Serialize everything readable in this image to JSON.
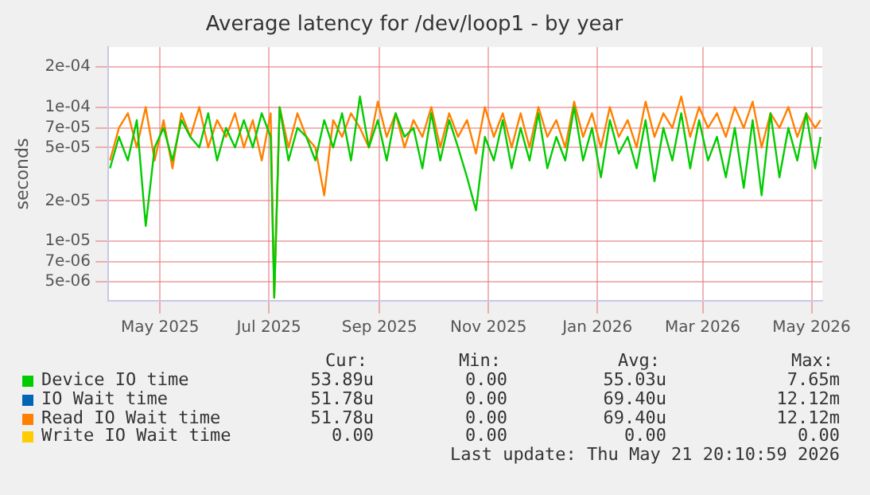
{
  "chart_data": {
    "type": "line",
    "title": "Average latency for /dev/loop1 - by year",
    "ylabel": "seconds",
    "log": "y",
    "grid": true,
    "legend": "bottom",
    "marker": "none",
    "line_style": "solid",
    "xlim": [
      "2025-04-16",
      "2026-05-21"
    ],
    "xticks": [
      {
        "value": "2025-05-15",
        "label": "May 2025"
      },
      {
        "value": "2025-07-15",
        "label": "Jul 2025"
      },
      {
        "value": "2025-09-15",
        "label": "Sep 2025"
      },
      {
        "value": "2025-11-15",
        "label": "Nov 2025"
      },
      {
        "value": "2026-01-15",
        "label": "Jan 2026"
      },
      {
        "value": "2026-03-15",
        "label": "Mar 2026"
      },
      {
        "value": "2026-05-15",
        "label": "May 2026"
      }
    ],
    "ylim": [
      3.6e-06,
      0.00028
    ],
    "yticks": [
      {
        "value": 5e-06,
        "label": "5e-06"
      },
      {
        "value": 7e-06,
        "label": "7e-06"
      },
      {
        "value": 1e-05,
        "label": "1e-05"
      },
      {
        "value": 2e-05,
        "label": "2e-05"
      },
      {
        "value": 5e-05,
        "label": "5e-05"
      },
      {
        "value": 7e-05,
        "label": "7e-05"
      },
      {
        "value": 0.0001,
        "label": "1e-04"
      },
      {
        "value": 0.0002,
        "label": "2e-04"
      }
    ],
    "x": [
      "2025-04-17",
      "2025-04-22",
      "2025-04-27",
      "2025-05-02",
      "2025-05-07",
      "2025-05-12",
      "2025-05-17",
      "2025-05-22",
      "2025-05-27",
      "2025-06-01",
      "2025-06-06",
      "2025-06-11",
      "2025-06-16",
      "2025-06-21",
      "2025-06-26",
      "2025-07-01",
      "2025-07-06",
      "2025-07-11",
      "2025-07-16",
      "2025-07-18",
      "2025-07-21",
      "2025-07-26",
      "2025-07-31",
      "2025-08-05",
      "2025-08-10",
      "2025-08-15",
      "2025-08-20",
      "2025-08-25",
      "2025-08-30",
      "2025-09-04",
      "2025-09-09",
      "2025-09-14",
      "2025-09-19",
      "2025-09-24",
      "2025-09-29",
      "2025-10-04",
      "2025-10-09",
      "2025-10-14",
      "2025-10-19",
      "2025-10-24",
      "2025-10-29",
      "2025-11-03",
      "2025-11-08",
      "2025-11-13",
      "2025-11-18",
      "2025-11-23",
      "2025-11-28",
      "2025-12-03",
      "2025-12-08",
      "2025-12-13",
      "2025-12-18",
      "2025-12-23",
      "2025-12-28",
      "2026-01-02",
      "2026-01-07",
      "2026-01-12",
      "2026-01-17",
      "2026-01-22",
      "2026-01-27",
      "2026-02-01",
      "2026-02-06",
      "2026-02-11",
      "2026-02-16",
      "2026-02-21",
      "2026-02-26",
      "2026-03-03",
      "2026-03-08",
      "2026-03-13",
      "2026-03-18",
      "2026-03-23",
      "2026-03-28",
      "2026-04-02",
      "2026-04-07",
      "2026-04-12",
      "2026-04-17",
      "2026-04-22",
      "2026-04-27",
      "2026-05-02",
      "2026-05-07",
      "2026-05-12",
      "2026-05-17",
      "2026-05-20"
    ],
    "series": [
      {
        "name": "Device IO time",
        "color": "#00cc00",
        "values": [
          3.5e-05,
          6e-05,
          4e-05,
          8e-05,
          1.3e-05,
          5e-05,
          7e-05,
          4e-05,
          8e-05,
          6e-05,
          5e-05,
          9e-05,
          4e-05,
          7e-05,
          5e-05,
          8e-05,
          5e-05,
          9e-05,
          6e-05,
          3.8e-06,
          0.0001,
          4e-05,
          7e-05,
          6e-05,
          4e-05,
          8e-05,
          5e-05,
          9e-05,
          4e-05,
          0.00012,
          5e-05,
          8e-05,
          4e-05,
          9e-05,
          6e-05,
          7e-05,
          3.5e-05,
          9e-05,
          4e-05,
          8e-05,
          5e-05,
          3e-05,
          1.7e-05,
          6e-05,
          4e-05,
          8e-05,
          3.5e-05,
          7e-05,
          4e-05,
          9e-05,
          3.5e-05,
          6e-05,
          4e-05,
          0.0001,
          4e-05,
          7e-05,
          3e-05,
          8e-05,
          4.5e-05,
          6e-05,
          3.5e-05,
          8e-05,
          2.8e-05,
          7e-05,
          4e-05,
          9e-05,
          3.5e-05,
          8e-05,
          4e-05,
          6e-05,
          3e-05,
          7e-05,
          2.5e-05,
          8e-05,
          2.2e-05,
          9e-05,
          3e-05,
          7e-05,
          4e-05,
          9e-05,
          3.5e-05,
          6e-05
        ]
      },
      {
        "name": "IO Wait time",
        "color": "#0066b3",
        "values": [
          null,
          null,
          null,
          null,
          null,
          null,
          null,
          null,
          null,
          null,
          null,
          null,
          null,
          null,
          null,
          null,
          null,
          null,
          null,
          null,
          null,
          null,
          null,
          null,
          null,
          null,
          null,
          null,
          null,
          null,
          null,
          null,
          null,
          null,
          null,
          null,
          null,
          null,
          null,
          null,
          null,
          null,
          null,
          null,
          null,
          null,
          null,
          null,
          null,
          null,
          null,
          null,
          null,
          null,
          null,
          null,
          null,
          null,
          null,
          null,
          null,
          null,
          null,
          null,
          null,
          null,
          null,
          null,
          null,
          null,
          null,
          null,
          null,
          null,
          null,
          null,
          null,
          null,
          null,
          null,
          null,
          null
        ]
      },
      {
        "name": "Read IO Wait time",
        "color": "#ff8000",
        "values": [
          4e-05,
          7e-05,
          9e-05,
          5e-05,
          0.0001,
          4e-05,
          8e-05,
          3.5e-05,
          9e-05,
          6e-05,
          0.0001,
          5e-05,
          8e-05,
          6e-05,
          9e-05,
          5e-05,
          8e-05,
          4e-05,
          9e-05,
          3.8e-06,
          0.0001,
          5e-05,
          9e-05,
          6e-05,
          5e-05,
          2.2e-05,
          8e-05,
          6e-05,
          9e-05,
          7e-05,
          5e-05,
          0.00011,
          6e-05,
          9e-05,
          5e-05,
          8e-05,
          6e-05,
          0.0001,
          5e-05,
          9e-05,
          6e-05,
          8e-05,
          4.5e-05,
          0.0001,
          6e-05,
          9e-05,
          5e-05,
          9e-05,
          5e-05,
          0.0001,
          6e-05,
          8e-05,
          5e-05,
          0.00011,
          6e-05,
          9e-05,
          5e-05,
          0.0001,
          6e-05,
          8e-05,
          5e-05,
          0.00011,
          6e-05,
          9e-05,
          7e-05,
          0.00012,
          6e-05,
          0.0001,
          7e-05,
          9e-05,
          6e-05,
          0.0001,
          7e-05,
          0.00011,
          5e-05,
          9e-05,
          7e-05,
          0.0001,
          6e-05,
          9e-05,
          7e-05,
          8e-05
        ]
      },
      {
        "name": "Write IO Wait time",
        "color": "#ffcc00",
        "values": [
          null,
          null,
          null,
          null,
          null,
          null,
          null,
          null,
          null,
          null,
          null,
          null,
          null,
          null,
          null,
          null,
          null,
          null,
          null,
          null,
          null,
          null,
          null,
          null,
          null,
          null,
          null,
          null,
          null,
          null,
          null,
          null,
          null,
          null,
          null,
          null,
          null,
          null,
          null,
          null,
          null,
          null,
          null,
          null,
          null,
          null,
          null,
          null,
          null,
          null,
          null,
          null,
          null,
          null,
          null,
          null,
          null,
          null,
          null,
          null,
          null,
          null,
          null,
          null,
          null,
          null,
          null,
          null,
          null,
          null,
          null,
          null,
          null,
          null,
          null,
          null,
          null,
          null,
          null,
          null,
          null,
          null
        ]
      }
    ],
    "annotations": [
      "Cur:",
      "Min:",
      "Avg:",
      "Max:",
      "53.89u",
      "0.00",
      "55.03u",
      "7.65m",
      "51.78u",
      "0.00",
      "69.40u",
      "12.12m",
      "51.78u",
      "0.00",
      "69.40u",
      "12.12m",
      "0.00",
      "0.00",
      "0.00",
      "0.00",
      "Last update: Thu May 21 20:10:59 2026"
    ]
  }
}
